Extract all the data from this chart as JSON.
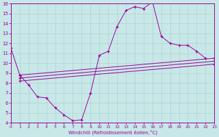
{
  "xlabel": "Windchill (Refroidissement éolien,°C)",
  "xlim": [
    0,
    23
  ],
  "ylim": [
    4,
    16
  ],
  "xticks": [
    0,
    1,
    2,
    3,
    4,
    5,
    6,
    7,
    8,
    9,
    10,
    11,
    12,
    13,
    14,
    15,
    16,
    17,
    18,
    19,
    20,
    21,
    22,
    23
  ],
  "yticks": [
    4,
    5,
    6,
    7,
    8,
    9,
    10,
    11,
    12,
    13,
    14,
    15,
    16
  ],
  "bg_color": "#c8e8e8",
  "line_color": "#990099",
  "grid_color": "#aacccc",
  "curves": [
    {
      "x": [
        0,
        1,
        2,
        3,
        4,
        5,
        6,
        7,
        8,
        9,
        10,
        11,
        12,
        13,
        14,
        15,
        16,
        17,
        18,
        19,
        20,
        21,
        22
      ],
      "y": [
        11.5,
        8.8,
        7.8,
        6.6,
        6.5,
        5.5,
        4.8,
        4.2,
        4.3,
        7.0,
        10.8,
        11.2,
        13.7,
        15.3,
        15.7,
        15.5,
        16.2,
        12.7,
        12.0,
        11.8,
        11.8,
        11.2,
        10.5
      ]
    },
    {
      "x": [
        1,
        23
      ],
      "y": [
        8.8,
        10.5
      ]
    },
    {
      "x": [
        1,
        23
      ],
      "y": [
        8.5,
        10.2
      ]
    },
    {
      "x": [
        1,
        23
      ],
      "y": [
        8.2,
        9.9
      ]
    }
  ]
}
